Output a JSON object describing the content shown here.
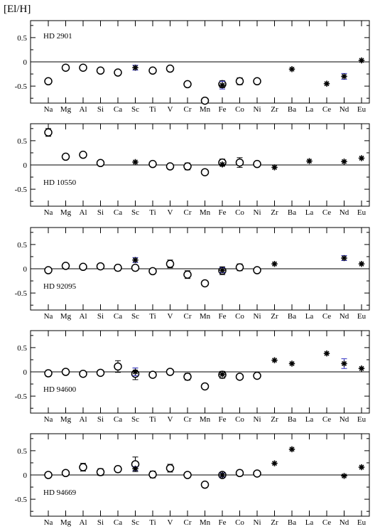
{
  "ylabel": "[El/H]",
  "chart_data": [
    {
      "type": "scatter",
      "star": "HD 2901",
      "star_label_pos": "top-left",
      "categories": [
        "Na",
        "Mg",
        "Al",
        "Si",
        "Ca",
        "Sc",
        "Ti",
        "V",
        "Cr",
        "Mn",
        "Fe",
        "Co",
        "Ni",
        "Zr",
        "Ba",
        "La",
        "Ce",
        "Nd",
        "Eu"
      ],
      "ylim": [
        -0.85,
        0.85
      ],
      "yticks": [
        0.5,
        0,
        -0.5
      ],
      "ytick_labels": [
        "0.5",
        "0",
        "-0.5"
      ],
      "zero_line": true,
      "circles": [
        {
          "cat": "Na",
          "y": -0.4
        },
        {
          "cat": "Mg",
          "y": -0.12
        },
        {
          "cat": "Al",
          "y": -0.12
        },
        {
          "cat": "Si",
          "y": -0.18,
          "err": 0.05
        },
        {
          "cat": "Ca",
          "y": -0.22,
          "err": 0.05
        },
        {
          "cat": "Ti",
          "y": -0.18,
          "err": 0.05
        },
        {
          "cat": "V",
          "y": -0.14,
          "err": 0.05
        },
        {
          "cat": "Cr",
          "y": -0.46,
          "err": 0.05
        },
        {
          "cat": "Mn",
          "y": -0.8
        },
        {
          "cat": "Fe",
          "y": -0.46,
          "err": 0.07
        },
        {
          "cat": "Co",
          "y": -0.4,
          "err": 0.07
        },
        {
          "cat": "Ni",
          "y": -0.4,
          "err": 0.05
        }
      ],
      "stars": [
        {
          "cat": "Sc",
          "y": -0.12,
          "err": 0.05
        },
        {
          "cat": "Fe",
          "y": -0.48,
          "err": 0.08
        },
        {
          "cat": "Ba",
          "y": -0.15
        },
        {
          "cat": "Ce",
          "y": -0.45
        },
        {
          "cat": "Nd",
          "y": -0.3,
          "err": 0.06
        },
        {
          "cat": "Eu",
          "y": 0.03
        }
      ]
    },
    {
      "type": "scatter",
      "star": "HD 10550",
      "star_label_pos": "bottom-left",
      "categories": [
        "Na",
        "Mg",
        "Al",
        "Si",
        "Ca",
        "Sc",
        "Ti",
        "V",
        "Cr",
        "Mn",
        "Fe",
        "Co",
        "Ni",
        "Zr",
        "Ba",
        "La",
        "Ce",
        "Nd",
        "Eu"
      ],
      "ylim": [
        -0.85,
        0.85
      ],
      "yticks": [
        0.5,
        0,
        -0.5
      ],
      "ytick_labels": [
        "0.5",
        "0",
        "-0.5"
      ],
      "zero_line": true,
      "circles": [
        {
          "cat": "Na",
          "y": 0.67,
          "err": 0.08
        },
        {
          "cat": "Mg",
          "y": 0.17
        },
        {
          "cat": "Al",
          "y": 0.21,
          "err": 0.05
        },
        {
          "cat": "Si",
          "y": 0.04
        },
        {
          "cat": "Ti",
          "y": 0.02
        },
        {
          "cat": "V",
          "y": -0.03
        },
        {
          "cat": "Cr",
          "y": -0.03,
          "err": 0.07
        },
        {
          "cat": "Mn",
          "y": -0.15
        },
        {
          "cat": "Fe",
          "y": 0.05,
          "err": 0.07
        },
        {
          "cat": "Co",
          "y": 0.05,
          "err": 0.1
        },
        {
          "cat": "Ni",
          "y": 0.02
        }
      ],
      "stars": [
        {
          "cat": "Sc",
          "y": 0.06
        },
        {
          "cat": "Fe",
          "y": 0.01
        },
        {
          "cat": "Zr",
          "y": -0.05
        },
        {
          "cat": "La",
          "y": 0.08
        },
        {
          "cat": "Nd",
          "y": 0.07
        },
        {
          "cat": "Eu",
          "y": 0.14
        }
      ]
    },
    {
      "type": "scatter",
      "star": "HD 92095",
      "star_label_pos": "bottom-left",
      "categories": [
        "Na",
        "Mg",
        "Al",
        "Si",
        "Ca",
        "Sc",
        "Ti",
        "V",
        "Cr",
        "Mn",
        "Fe",
        "Co",
        "Ni",
        "Zr",
        "Ba",
        "La",
        "Ce",
        "Nd",
        "Eu"
      ],
      "ylim": [
        -0.85,
        0.85
      ],
      "yticks": [
        0.5,
        0,
        -0.5
      ],
      "ytick_labels": [
        "0.5",
        "0",
        "-0.5"
      ],
      "zero_line": true,
      "circles": [
        {
          "cat": "Na",
          "y": -0.03
        },
        {
          "cat": "Mg",
          "y": 0.06
        },
        {
          "cat": "Al",
          "y": 0.04
        },
        {
          "cat": "Si",
          "y": 0.05,
          "err": 0.04
        },
        {
          "cat": "Ca",
          "y": 0.02,
          "err": 0.06
        },
        {
          "cat": "Sc",
          "y": 0.02
        },
        {
          "cat": "Ti",
          "y": -0.05
        },
        {
          "cat": "V",
          "y": 0.1,
          "err": 0.08
        },
        {
          "cat": "Cr",
          "y": -0.12,
          "err": 0.08
        },
        {
          "cat": "Mn",
          "y": -0.3
        },
        {
          "cat": "Fe",
          "y": -0.04,
          "err": 0.08
        },
        {
          "cat": "Co",
          "y": 0.03,
          "err": 0.07
        },
        {
          "cat": "Ni",
          "y": -0.03,
          "err": 0.04
        }
      ],
      "stars": [
        {
          "cat": "Sc",
          "y": 0.18,
          "err": 0.05
        },
        {
          "cat": "Fe",
          "y": -0.03,
          "err": 0.05
        },
        {
          "cat": "Zr",
          "y": 0.1
        },
        {
          "cat": "Nd",
          "y": 0.22,
          "err": 0.05
        },
        {
          "cat": "Eu",
          "y": 0.1
        }
      ]
    },
    {
      "type": "scatter",
      "star": "HD 94600",
      "star_label_pos": "bottom-left",
      "categories": [
        "Na",
        "Mg",
        "Al",
        "Si",
        "Ca",
        "Sc",
        "Ti",
        "V",
        "Cr",
        "Mn",
        "Fe",
        "Co",
        "Ni",
        "Zr",
        "Ba",
        "La",
        "Ce",
        "Nd",
        "Eu"
      ],
      "ylim": [
        -0.85,
        0.85
      ],
      "yticks": [
        0.5,
        0,
        -0.5
      ],
      "ytick_labels": [
        "0.5",
        "0",
        "-0.5"
      ],
      "zero_line": true,
      "circles": [
        {
          "cat": "Na",
          "y": -0.03,
          "err": 0.06
        },
        {
          "cat": "Mg",
          "y": 0.0
        },
        {
          "cat": "Al",
          "y": -0.04
        },
        {
          "cat": "Si",
          "y": -0.02,
          "err": 0.05
        },
        {
          "cat": "Ca",
          "y": 0.11,
          "err": 0.12
        },
        {
          "cat": "Sc",
          "y": -0.04,
          "err": 0.12
        },
        {
          "cat": "Ti",
          "y": -0.06,
          "err": 0.05
        },
        {
          "cat": "V",
          "y": 0.0,
          "err": 0.04
        },
        {
          "cat": "Cr",
          "y": -0.1,
          "err": 0.07
        },
        {
          "cat": "Mn",
          "y": -0.3
        },
        {
          "cat": "Fe",
          "y": -0.06,
          "err": 0.07
        },
        {
          "cat": "Co",
          "y": -0.1,
          "err": 0.05
        },
        {
          "cat": "Ni",
          "y": -0.08,
          "err": 0.04
        }
      ],
      "stars": [
        {
          "cat": "Sc",
          "y": 0.0,
          "err": 0.08
        },
        {
          "cat": "Fe",
          "y": -0.05
        },
        {
          "cat": "Zr",
          "y": 0.24
        },
        {
          "cat": "Ba",
          "y": 0.17
        },
        {
          "cat": "Ce",
          "y": 0.38
        },
        {
          "cat": "Nd",
          "y": 0.17,
          "err": 0.1
        },
        {
          "cat": "Eu",
          "y": 0.07
        }
      ]
    },
    {
      "type": "scatter",
      "star": "HD 94669",
      "star_label_pos": "bottom-left",
      "categories": [
        "Na",
        "Mg",
        "Al",
        "Si",
        "Ca",
        "Sc",
        "Ti",
        "V",
        "Cr",
        "Mn",
        "Fe",
        "Co",
        "Ni",
        "Zr",
        "Ba",
        "La",
        "Ce",
        "Nd",
        "Eu"
      ],
      "ylim": [
        -0.85,
        0.85
      ],
      "yticks": [
        0.5,
        0,
        -0.5
      ],
      "ytick_labels": [
        "0.5",
        "0",
        "-0.5"
      ],
      "zero_line": true,
      "circles": [
        {
          "cat": "Na",
          "y": 0.0
        },
        {
          "cat": "Mg",
          "y": 0.04
        },
        {
          "cat": "Al",
          "y": 0.16,
          "err": 0.08
        },
        {
          "cat": "Si",
          "y": 0.06,
          "err": 0.07
        },
        {
          "cat": "Ca",
          "y": 0.12,
          "err": 0.06
        },
        {
          "cat": "Sc",
          "y": 0.22,
          "err": 0.15
        },
        {
          "cat": "Ti",
          "y": 0.01,
          "err": 0.07
        },
        {
          "cat": "V",
          "y": 0.14,
          "err": 0.08
        },
        {
          "cat": "Cr",
          "y": 0.0,
          "err": 0.05
        },
        {
          "cat": "Mn",
          "y": -0.2
        },
        {
          "cat": "Fe",
          "y": 0.0,
          "err": 0.05
        },
        {
          "cat": "Co",
          "y": 0.04,
          "err": 0.06
        },
        {
          "cat": "Ni",
          "y": 0.03,
          "err": 0.05
        }
      ],
      "stars": [
        {
          "cat": "Sc",
          "y": 0.13,
          "err": 0.04
        },
        {
          "cat": "Fe",
          "y": 0.0,
          "err": 0.04
        },
        {
          "cat": "Zr",
          "y": 0.24
        },
        {
          "cat": "Ba",
          "y": 0.53
        },
        {
          "cat": "Nd",
          "y": -0.02
        },
        {
          "cat": "Eu",
          "y": 0.16
        }
      ]
    }
  ],
  "colors": {
    "axis": "#000000",
    "marker": "#000000",
    "errorbar_blue": "#3030c0"
  }
}
